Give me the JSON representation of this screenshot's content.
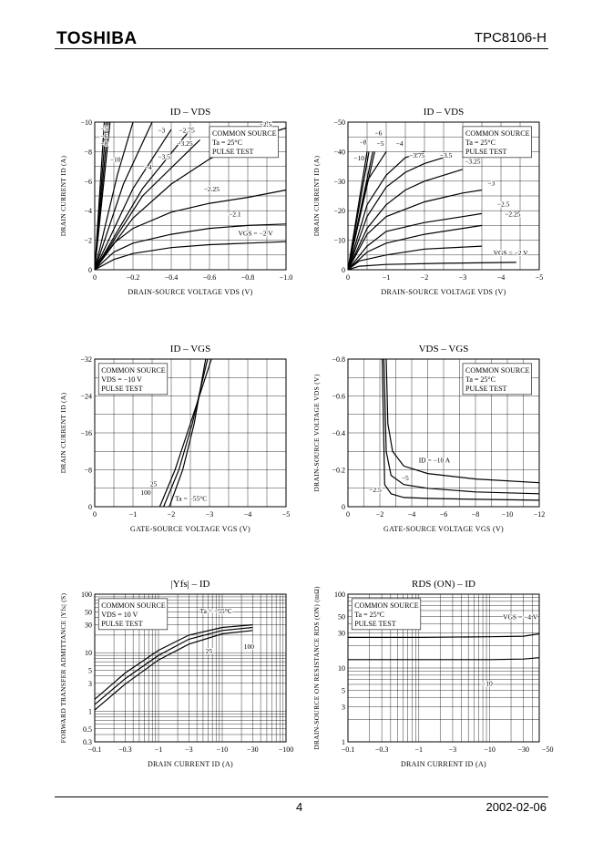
{
  "header": {
    "logo": "TOSHIBA",
    "part_number": "TPC8106-H"
  },
  "footer": {
    "page": "4",
    "date": "2002-02-06"
  },
  "chart_data": [
    {
      "id": "id_vds_low",
      "type": "line",
      "title": "ID – VDS",
      "xlabel": "DRAIN-SOURCE VOLTAGE  VDS   (V)",
      "ylabel": "DRAIN CURRENT   ID   (A)",
      "xscale": "linear",
      "yscale": "linear",
      "xlim": [
        0,
        -1.0
      ],
      "ylim": [
        0,
        -10
      ],
      "xticks": [
        0,
        -0.2,
        -0.4,
        -0.6,
        -0.8,
        -1.0
      ],
      "xticklabels": [
        "0",
        "−0.2",
        "−0.4",
        "−0.6",
        "−0.8",
        "−1.0"
      ],
      "yticks": [
        0,
        -2,
        -4,
        -6,
        -8,
        -10
      ],
      "yticklabels": [
        "0",
        "−2",
        "−4",
        "−6",
        "−8",
        "−10"
      ],
      "xgrid": 10,
      "ygrid": 10,
      "legend": [
        "COMMON SOURCE",
        "Ta = 25°C",
        "PULSE TEST"
      ],
      "legend_position": "top-right",
      "series": [
        {
          "name": "−10",
          "x": [
            0,
            -0.05
          ],
          "y": [
            0,
            -10
          ]
        },
        {
          "name": "−8",
          "x": [
            0,
            -0.06
          ],
          "y": [
            0,
            -10
          ]
        },
        {
          "name": "−6",
          "x": [
            0,
            -0.07
          ],
          "y": [
            0,
            -10
          ]
        },
        {
          "name": "−5",
          "x": [
            0,
            -0.08
          ],
          "y": [
            0,
            -10
          ]
        },
        {
          "name": "−4",
          "x": [
            0,
            -0.12,
            -0.2
          ],
          "y": [
            0,
            -6.5,
            -10
          ]
        },
        {
          "name": "−3.5",
          "x": [
            0,
            -0.15,
            -0.3
          ],
          "y": [
            0,
            -5.8,
            -10
          ]
        },
        {
          "name": "−3.25",
          "x": [
            0,
            -0.2,
            -0.4
          ],
          "y": [
            0,
            -5.5,
            -9.5
          ]
        },
        {
          "name": "−3",
          "x": [
            0,
            -0.25,
            -0.5
          ],
          "y": [
            0,
            -5.5,
            -9.5
          ]
        },
        {
          "name": "−2.75",
          "x": [
            0,
            -0.25,
            -0.55
          ],
          "y": [
            0,
            -5.0,
            -8.8
          ]
        },
        {
          "name": "−2.5",
          "x": [
            0,
            -0.2,
            -0.4,
            -0.6,
            -0.8,
            -1.0
          ],
          "y": [
            0,
            -3.5,
            -5.8,
            -7.5,
            -8.8,
            -9.6
          ]
        },
        {
          "name": "−2.25",
          "x": [
            0,
            -0.1,
            -0.2,
            -0.4,
            -0.6,
            -0.8,
            -1.0
          ],
          "y": [
            0,
            -1.8,
            -2.8,
            -3.9,
            -4.5,
            -4.9,
            -5.4
          ]
        },
        {
          "name": "−2.1",
          "x": [
            0,
            -0.1,
            -0.2,
            -0.4,
            -0.6,
            -0.8,
            -1.0
          ],
          "y": [
            0,
            -1.2,
            -1.8,
            -2.4,
            -2.8,
            -3.0,
            -3.1
          ]
        },
        {
          "name": "VGS = −2 V",
          "x": [
            0,
            -0.1,
            -0.2,
            -0.4,
            -0.6,
            -0.8,
            -1.0
          ],
          "y": [
            0,
            -0.7,
            -1.1,
            -1.5,
            -1.7,
            -1.8,
            -1.9
          ]
        }
      ],
      "annotations": [
        "−5",
        "−6",
        "−8",
        "−10",
        "−3",
        "−2.75",
        "−3.25",
        "−3.5",
        "−4",
        "−2.5",
        "−2.25",
        "−2.1",
        "VGS = −2 V"
      ]
    },
    {
      "id": "id_vds_high",
      "type": "line",
      "title": "ID – VDS",
      "xlabel": "DRAIN-SOURCE VOLTAGE  VDS   (V)",
      "ylabel": "DRAIN CURRENT   ID   (A)",
      "xscale": "linear",
      "yscale": "linear",
      "xlim": [
        0,
        -5
      ],
      "ylim": [
        0,
        -50
      ],
      "xticks": [
        0,
        -1,
        -2,
        -3,
        -4,
        -5
      ],
      "xticklabels": [
        "0",
        "−1",
        "−2",
        "−3",
        "−4",
        "−5"
      ],
      "yticks": [
        0,
        -10,
        -20,
        -30,
        -40,
        -50
      ],
      "yticklabels": [
        "0",
        "−10",
        "−20",
        "−30",
        "−40",
        "−50"
      ],
      "xgrid": 10,
      "ygrid": 10,
      "legend": [
        "COMMON SOURCE",
        "Ta = 25°C",
        "PULSE TEST"
      ],
      "legend_position": "top-right",
      "series": [
        {
          "name": "−10",
          "x": [
            0,
            -0.5
          ],
          "y": [
            0,
            -40
          ]
        },
        {
          "name": "−8",
          "x": [
            0,
            -0.55
          ],
          "y": [
            0,
            -40
          ]
        },
        {
          "name": "−6",
          "x": [
            0,
            -0.65
          ],
          "y": [
            0,
            -40
          ]
        },
        {
          "name": "−5",
          "x": [
            0,
            -0.7
          ],
          "y": [
            0,
            -40
          ]
        },
        {
          "name": "−4",
          "x": [
            0,
            -0.5,
            -1.0
          ],
          "y": [
            0,
            -30,
            -40
          ]
        },
        {
          "name": "−3.75",
          "x": [
            0,
            -0.5,
            -1.0,
            -1.5,
            -2.0
          ],
          "y": [
            0,
            -22,
            -32,
            -38,
            -40
          ]
        },
        {
          "name": "−3.5",
          "x": [
            0,
            -0.5,
            -1.0,
            -1.5,
            -2.0,
            -2.5
          ],
          "y": [
            0,
            -18,
            -28,
            -33,
            -36,
            -38
          ]
        },
        {
          "name": "−3.25",
          "x": [
            0,
            -0.5,
            -1.0,
            -1.5,
            -2.0,
            -2.5,
            -3.0
          ],
          "y": [
            0,
            -14,
            -22,
            -27,
            -30,
            -32,
            -34
          ]
        },
        {
          "name": "−3",
          "x": [
            0,
            -0.5,
            -1.0,
            -2.0,
            -3.0,
            -3.5
          ],
          "y": [
            0,
            -12,
            -18,
            -23,
            -26,
            -27
          ]
        },
        {
          "name": "−2.5",
          "x": [
            0,
            -0.5,
            -1.0,
            -2.0,
            -3.0,
            -3.5
          ],
          "y": [
            0,
            -8,
            -13,
            -16,
            -18,
            -19
          ]
        },
        {
          "name": "−2.25",
          "x": [
            0,
            -0.5,
            -1.0,
            -2.0,
            -3.0,
            -3.5
          ],
          "y": [
            0,
            -6,
            -9,
            -12,
            -14,
            -15
          ]
        },
        {
          "name": "−2.1",
          "x": [
            0,
            -0.3,
            -1.0,
            -2.0,
            -3.5
          ],
          "y": [
            0,
            -3,
            -5,
            -7,
            -8
          ]
        },
        {
          "name": "VGS = −2 V",
          "x": [
            0,
            -0.3,
            -1.0,
            -2.5,
            -4.4
          ],
          "y": [
            0,
            -1.2,
            -1.8,
            -2.2,
            -2.5
          ]
        }
      ],
      "annotations": [
        "−6",
        "−8",
        "−5",
        "−4",
        "−10",
        "−3.75",
        "−3.5",
        "−3.25",
        "−3",
        "−2.5",
        "−2.25",
        "VGS = −2 V"
      ]
    },
    {
      "id": "id_vgs",
      "type": "line",
      "title": "ID – VGS",
      "xlabel": "GATE-SOURCE VOLTAGE  VGS   (V)",
      "ylabel": "DRAIN CURRENT   ID   (A)",
      "xscale": "linear",
      "yscale": "linear",
      "xlim": [
        0,
        -5
      ],
      "ylim": [
        0,
        -32
      ],
      "xticks": [
        0,
        -1,
        -2,
        -3,
        -4,
        -5
      ],
      "xticklabels": [
        "0",
        "−1",
        "−2",
        "−3",
        "−4",
        "−5"
      ],
      "yticks": [
        0,
        -8,
        -16,
        -24,
        -32
      ],
      "yticklabels": [
        "0",
        "−8",
        "−16",
        "−24",
        "−32"
      ],
      "xgrid": 10,
      "ygrid": 8,
      "legend": [
        "COMMON SOURCE",
        "VDS = −10 V",
        "PULSE TEST"
      ],
      "legend_position": "top-left",
      "series": [
        {
          "name": "Ta = −55°C",
          "x": [
            -1.95,
            -2.3,
            -2.6,
            -2.9
          ],
          "y": [
            0,
            -8,
            -18,
            -32
          ]
        },
        {
          "name": "25",
          "x": [
            -1.8,
            -2.2,
            -2.55,
            -2.95
          ],
          "y": [
            0,
            -8,
            -18,
            -32
          ]
        },
        {
          "name": "100",
          "x": [
            -1.7,
            -2.1,
            -2.5,
            -3.05
          ],
          "y": [
            0,
            -8,
            -18,
            -32
          ]
        }
      ],
      "annotations": [
        "25",
        "100",
        "Ta = −55°C"
      ]
    },
    {
      "id": "vds_vgs",
      "type": "line",
      "title": "VDS – VGS",
      "xlabel": "GATE-SOURCE VOLTAGE  VGS   (V)",
      "ylabel": "DRAIN-SOURCE VOLTAGE  VDS   (V)",
      "xscale": "linear",
      "yscale": "linear",
      "xlim": [
        0,
        -12
      ],
      "ylim": [
        0,
        -0.8
      ],
      "xticks": [
        0,
        -2,
        -4,
        -6,
        -8,
        -10,
        -12
      ],
      "xticklabels": [
        "0",
        "−2",
        "−4",
        "−6",
        "−8",
        "−10",
        "−12"
      ],
      "yticks": [
        0,
        -0.2,
        -0.4,
        -0.6,
        -0.8
      ],
      "yticklabels": [
        "0",
        "−0.2",
        "−0.4",
        "−0.6",
        "−0.8"
      ],
      "xgrid": 12,
      "ygrid": 8,
      "legend": [
        "COMMON SOURCE",
        "Ta = 25°C",
        "PULSE TEST"
      ],
      "legend_position": "top-right",
      "series": [
        {
          "name": "ID = −10 A",
          "x": [
            -2.4,
            -2.5,
            -2.8,
            -3.5,
            -5,
            -8,
            -12
          ],
          "y": [
            -0.8,
            -0.45,
            -0.3,
            -0.22,
            -0.18,
            -0.15,
            -0.13
          ]
        },
        {
          "name": "−5",
          "x": [
            -2.25,
            -2.4,
            -2.7,
            -3.5,
            -5,
            -8,
            -12
          ],
          "y": [
            -0.8,
            -0.3,
            -0.17,
            -0.12,
            -0.1,
            -0.08,
            -0.07
          ]
        },
        {
          "name": "−2.5",
          "x": [
            -2.15,
            -2.3,
            -2.7,
            -3.5,
            -5,
            -8,
            -12
          ],
          "y": [
            -0.8,
            -0.12,
            -0.07,
            -0.05,
            -0.045,
            -0.04,
            -0.035
          ]
        }
      ],
      "annotations": [
        "ID = −10 A",
        "−5",
        "−2.5"
      ]
    },
    {
      "id": "yfs_id",
      "type": "line",
      "title": "|Yfs| – ID",
      "xlabel": "DRAIN CURRENT   ID   (A)",
      "ylabel": "FORWARD TRANSFER ADMITTANCE  |Yfs|  (S)",
      "xscale": "log",
      "yscale": "log",
      "xlim": [
        -0.1,
        -100
      ],
      "ylim": [
        0.3,
        100
      ],
      "xticks": [
        -0.1,
        -0.3,
        -1,
        -3,
        -10,
        -30,
        -100
      ],
      "xticklabels": [
        "−0.1",
        "−0.3",
        "−1",
        "−3",
        "−10",
        "−30",
        "−100"
      ],
      "yticks": [
        0.3,
        0.5,
        1,
        3,
        5,
        10,
        30,
        50,
        100
      ],
      "yticklabels": [
        "0.3",
        "0.5",
        "1",
        "3",
        "5",
        "10",
        "30",
        "50",
        "100"
      ],
      "legend": [
        "COMMON SOURCE",
        "VDS = 10 V",
        "PULSE TEST"
      ],
      "legend_position": "top-left",
      "series": [
        {
          "name": "Ta = −55°C",
          "x": [
            -0.1,
            -0.3,
            -1,
            -3,
            -10,
            -30
          ],
          "y": [
            1.6,
            4.5,
            11,
            20,
            27,
            30
          ]
        },
        {
          "name": "25",
          "x": [
            -0.1,
            -0.3,
            -1,
            -3,
            -10,
            -30
          ],
          "y": [
            1.3,
            3.6,
            9,
            17,
            24,
            27
          ]
        },
        {
          "name": "100",
          "x": [
            -0.1,
            -0.3,
            -1,
            -3,
            -10,
            -30
          ],
          "y": [
            1.05,
            2.9,
            7.5,
            14,
            21,
            24
          ]
        }
      ],
      "annotations": [
        "Ta = −55°C",
        "25",
        "100"
      ]
    },
    {
      "id": "rds_id",
      "type": "line",
      "title": "RDS (ON) – ID",
      "xlabel": "DRAIN CURRENT   ID   (A)",
      "ylabel": "DRAIN-SOURCE ON RESISTANCE  RDS (ON)  (mΩ)",
      "xscale": "log",
      "yscale": "log",
      "xlim": [
        -0.1,
        -50
      ],
      "ylim": [
        1,
        100
      ],
      "xticks": [
        -0.1,
        -0.3,
        -1,
        -3,
        -10,
        -30
      ],
      "xticklabels": [
        "−0.1",
        "−0.3",
        "−1",
        "−3",
        "−10",
        "−30"
      ],
      "extra_xticklabel": "−50",
      "yticks": [
        1,
        3,
        5,
        10,
        30,
        50,
        100
      ],
      "yticklabels": [
        "1",
        "3",
        "5",
        "10",
        "30",
        "50",
        "100"
      ],
      "legend": [
        "COMMON SOURCE",
        "Ta = 25°C",
        "PULSE TEST"
      ],
      "legend_position": "top-left",
      "series": [
        {
          "name": "VGS = −4 V",
          "x": [
            -0.1,
            -1,
            -10,
            -30,
            -50
          ],
          "y": [
            26,
            26,
            26.5,
            27,
            29
          ]
        },
        {
          "name": "−10",
          "x": [
            -0.1,
            -1,
            -10,
            -30,
            -50
          ],
          "y": [
            13,
            13,
            13,
            13.2,
            13.8
          ]
        }
      ],
      "annotations": [
        "VGS = −4 V",
        "−10"
      ]
    }
  ]
}
